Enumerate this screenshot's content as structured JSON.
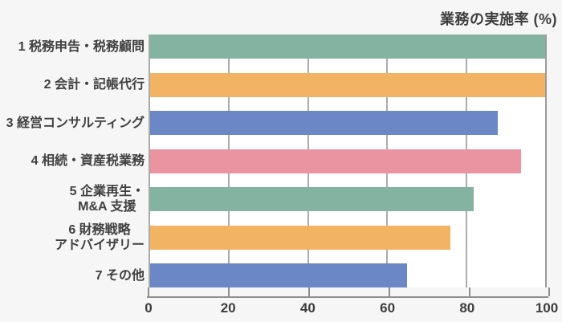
{
  "chart_data": {
    "type": "bar",
    "orientation": "horizontal",
    "title": "業務の実施率 (%)",
    "categories": [
      "1 税務申告・税務顧問",
      "2 会計・記帳代行",
      "3 経営コンサルティング",
      "4 相続・資産税業務",
      "5 企業再生・\nM&A 支援",
      "6 財務戦略\nアドバイザリー",
      "7 その他"
    ],
    "values": [
      100,
      100,
      88,
      94,
      82,
      76,
      65
    ],
    "bar_colors": [
      "#85b3a1",
      "#f2b464",
      "#6c87c6",
      "#ea94a2",
      "#85b3a1",
      "#f2b464",
      "#6c87c6"
    ],
    "xlabel": "",
    "ylabel": "",
    "xlim": [
      0,
      100
    ],
    "x_ticks": [
      0,
      20,
      40,
      60,
      80,
      100
    ],
    "grid": true,
    "legend": "none"
  },
  "colors": {
    "background": "#f5f6f5",
    "plot_background": "#ffffff",
    "gridline": "#ababab",
    "axis_line": "#8f8f8f",
    "text": "#3e3e3e",
    "green": "#85b3a1",
    "orange": "#f2b464",
    "blue": "#6c87c6",
    "pink": "#ea94a2"
  }
}
